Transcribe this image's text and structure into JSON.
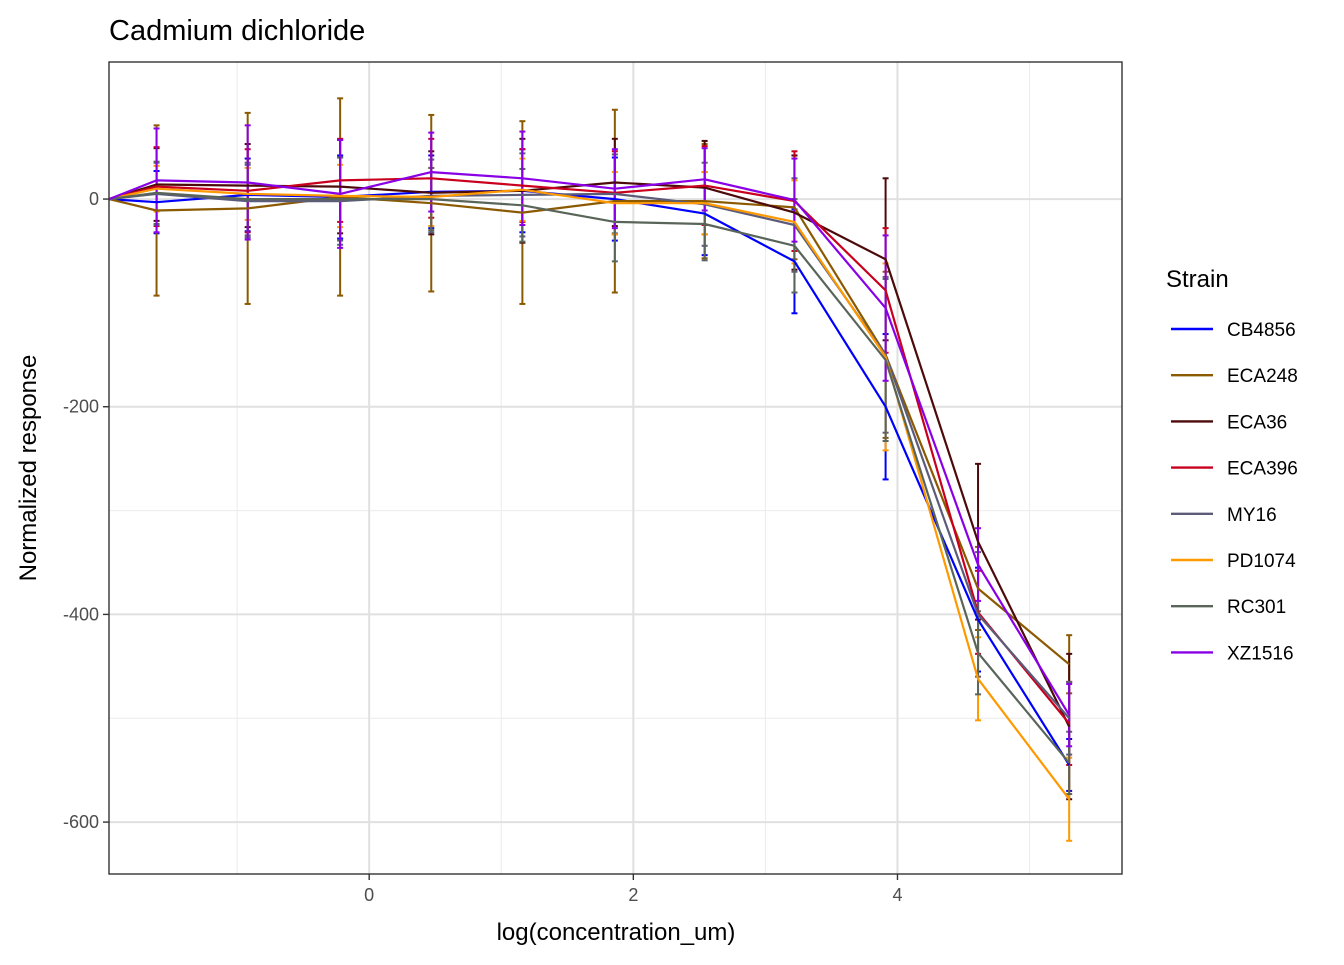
{
  "chart_data": {
    "type": "line",
    "title": "Cadmium dichloride",
    "xlabel": "log(concentration_um)",
    "ylabel": "Normalized response",
    "xlim": [
      -1.97,
      5.7
    ],
    "ylim": [
      -650,
      132
    ],
    "x_ticks": [
      {
        "value": 0,
        "label": "0"
      },
      {
        "value": 2,
        "label": "2"
      },
      {
        "value": 4,
        "label": "4"
      }
    ],
    "y_ticks": [
      {
        "value": 0,
        "label": "0"
      },
      {
        "value": -200,
        "label": "-200"
      },
      {
        "value": -400,
        "label": "-400"
      },
      {
        "value": -600,
        "label": "-600"
      }
    ],
    "grid": true,
    "legend": {
      "title": "Strain",
      "position": "right"
    },
    "x": [
      -1.97,
      -1.61,
      -0.92,
      -0.22,
      0.47,
      1.16,
      1.86,
      2.54,
      3.22,
      3.91,
      4.61,
      5.3
    ],
    "series": [
      {
        "name": "CB4856",
        "color": "#0000FF",
        "values": [
          0,
          -3,
          4,
          2,
          7,
          8,
          0,
          -14,
          -60,
          -200,
          -405,
          -545
        ],
        "errors": [
          0,
          30,
          35,
          40,
          35,
          40,
          40,
          40,
          50,
          70,
          50,
          25
        ]
      },
      {
        "name": "ECA248",
        "color": "#8B5A00",
        "values": [
          0,
          -11,
          -9,
          2,
          -4,
          -13,
          -2,
          -2,
          -8,
          -150,
          -375,
          -448
        ],
        "errors": [
          0,
          82,
          92,
          95,
          85,
          88,
          88,
          55,
          50,
          80,
          40,
          28
        ]
      },
      {
        "name": "ECA36",
        "color": "#4D0A0A",
        "values": [
          0,
          14,
          13,
          12,
          6,
          8,
          16,
          11,
          -13,
          -58,
          -330,
          -508
        ],
        "errors": [
          0,
          35,
          40,
          45,
          40,
          50,
          42,
          45,
          55,
          78,
          75,
          70
        ]
      },
      {
        "name": "ECA396",
        "color": "#C8001E",
        "values": [
          0,
          12,
          8,
          18,
          20,
          13,
          6,
          13,
          -2,
          -88,
          -398,
          -505
        ],
        "errors": [
          0,
          38,
          40,
          40,
          38,
          35,
          40,
          38,
          48,
          60,
          40,
          40
        ]
      },
      {
        "name": "MY16",
        "color": "#5C5C7A",
        "values": [
          0,
          5,
          -2,
          -2,
          3,
          4,
          5,
          -5,
          -25,
          -150,
          -400,
          -500
        ],
        "errors": [
          0,
          30,
          35,
          42,
          35,
          40,
          38,
          40,
          45,
          75,
          60,
          35
        ]
      },
      {
        "name": "PD1074",
        "color": "#FF9900",
        "values": [
          0,
          10,
          5,
          3,
          2,
          9,
          -4,
          -4,
          -22,
          -152,
          -462,
          -578
        ],
        "errors": [
          0,
          22,
          25,
          30,
          28,
          30,
          30,
          30,
          40,
          90,
          40,
          40
        ]
      },
      {
        "name": "RC301",
        "color": "#5A655A",
        "values": [
          0,
          6,
          0,
          0,
          0,
          -6,
          -22,
          -24,
          -45,
          -155,
          -437,
          -543
        ],
        "errors": [
          0,
          30,
          35,
          40,
          30,
          35,
          38,
          35,
          45,
          78,
          40,
          30
        ]
      },
      {
        "name": "XZ1516",
        "color": "#8A00E6",
        "values": [
          0,
          18,
          16,
          5,
          26,
          20,
          10,
          19,
          -1,
          -105,
          -352,
          -497
        ],
        "errors": [
          0,
          50,
          55,
          52,
          38,
          45,
          38,
          30,
          40,
          70,
          35,
          30
        ]
      }
    ]
  }
}
